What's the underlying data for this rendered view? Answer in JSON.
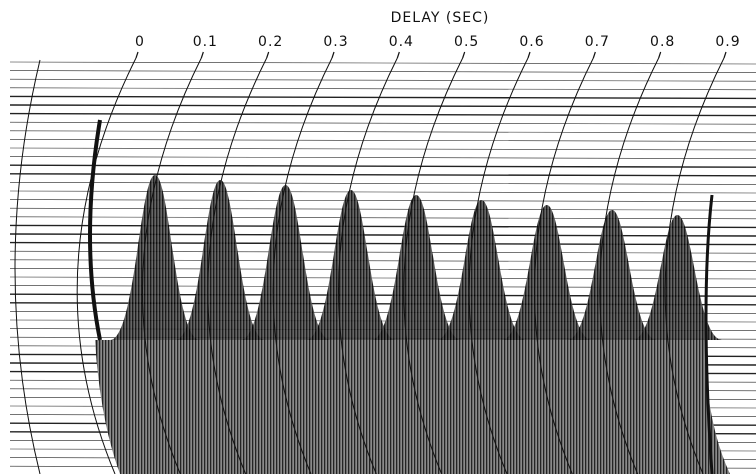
{
  "chart_data": {
    "type": "waterfall",
    "xlabel": "DELAY (SEC)",
    "xlim": [
      0,
      0.9
    ],
    "xticks": [
      0,
      0.1,
      0.2,
      0.3,
      0.4,
      0.5,
      0.6,
      0.7,
      0.8,
      0.9
    ]
  }
}
